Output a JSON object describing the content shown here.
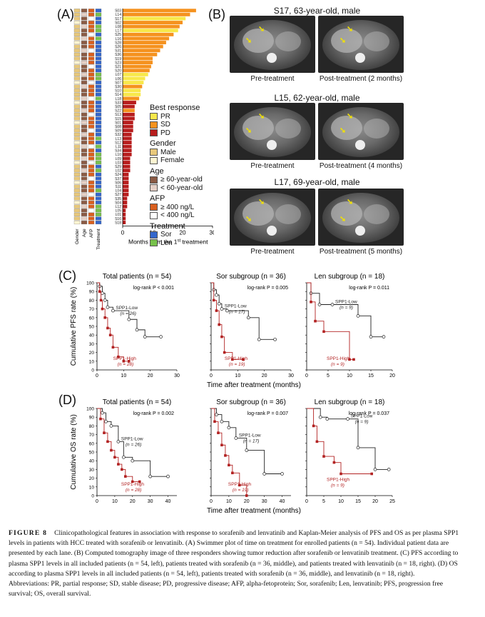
{
  "panels": {
    "a": "(A)",
    "b": "(B)",
    "c": "(C)",
    "d": "(D)"
  },
  "swimmer": {
    "patients": [
      "S03",
      "L14",
      "S17",
      "S02",
      "L08",
      "L17",
      "S25",
      "L16",
      "S28",
      "S26",
      "S31",
      "S36",
      "S19",
      "S23",
      "S21",
      "S20",
      "L07",
      "L06",
      "S07",
      "S30",
      "S10",
      "S14",
      "L18",
      "S33",
      "S05",
      "S22",
      "S13",
      "S15",
      "S01",
      "S08",
      "S09",
      "S32",
      "L13",
      "S12",
      "L11",
      "S34",
      "L10",
      "L09",
      "L03",
      "S29",
      "L02",
      "S24",
      "S37",
      "S06",
      "S11",
      "L04",
      "S27",
      "S35",
      "S04",
      "L12",
      "L05",
      "L01",
      "S16",
      "S18"
    ],
    "months": [
      24.5,
      22.5,
      21,
      20,
      19,
      18.5,
      17,
      15.5,
      14.5,
      13.5,
      12.5,
      11.5,
      10,
      10,
      9.5,
      9,
      8.5,
      7.5,
      7,
      6.5,
      6,
      6,
      5.5,
      4.5,
      4,
      4,
      4,
      4,
      3.5,
      3.5,
      3.5,
      3,
      3,
      3,
      3,
      3,
      3,
      2.5,
      2.5,
      2.5,
      2.5,
      2,
      2,
      2,
      2,
      2,
      2,
      1.5,
      1.5,
      1.5,
      1,
      1,
      1,
      1
    ],
    "response": [
      "SD",
      "SD",
      "PR",
      "SD",
      "SD",
      "PR",
      "SD",
      "SD",
      "SD",
      "SD",
      "SD",
      "SD",
      "SD",
      "SD",
      "SD",
      "SD",
      "PR",
      "PR",
      "PR",
      "SD",
      "PR",
      "PR",
      "SD",
      "PD",
      "PD",
      "SD",
      "PD",
      "PD",
      "PD",
      "PD",
      "PD",
      "PD",
      "PD",
      "PD",
      "PD",
      "PD",
      "PD",
      "PD",
      "PD",
      "PD",
      "PD",
      "PD",
      "PD",
      "PD",
      "PD",
      "PD",
      "PD",
      "PD",
      "PD",
      "PD",
      "PD",
      "PD",
      "PD",
      "PD"
    ],
    "columns": [
      "Gender",
      "Age",
      "AFP",
      "Treatment"
    ],
    "xlabel_main": "Months from the 1",
    "xlabel_sup": "st",
    "xlabel_end": " treatment",
    "xticks": [
      "0",
      "10",
      "20",
      "30"
    ],
    "xmax": 30,
    "legend": {
      "best_response_title": "Best response",
      "br": [
        {
          "label": "PR",
          "color": "#f8e84a"
        },
        {
          "label": "SD",
          "color": "#f5921e"
        },
        {
          "label": "PD",
          "color": "#b71c1c"
        }
      ],
      "gender_title": "Gender",
      "gender": [
        {
          "label": "Male",
          "color": "#e8c87a"
        },
        {
          "label": "Female",
          "color": "#fff6d2"
        }
      ],
      "age_title": "Age",
      "age": [
        {
          "label": "≥ 60-year-old",
          "color": "#8a5a44"
        },
        {
          "label": "< 60-year-old",
          "color": "#e5d0c6"
        }
      ],
      "afp_title": "AFP",
      "afp": [
        {
          "label": "≥ 400 ng/L",
          "color": "#d95f1e"
        },
        {
          "label": "< 400 ng/L",
          "color": "#ffffff"
        }
      ],
      "treatment_title": "Treatment",
      "treatment": [
        {
          "label": "Sor",
          "color": "#3366cc"
        },
        {
          "label": "Len",
          "color": "#77c14b"
        }
      ]
    }
  },
  "ct": {
    "rows": [
      {
        "title": "S17, 63-year-old, male",
        "pre": "Pre-treatment",
        "post": "Post-treatment (2 months)"
      },
      {
        "title": "L15, 62-year-old, male",
        "pre": "Pre-treatment",
        "post": "Post-treatment (4 months)"
      },
      {
        "title": "L17, 69-year-old, male",
        "pre": "Pre-treatment",
        "post": "Post-treatment (5 months)"
      }
    ]
  },
  "chart_data": [
    {
      "type": "line",
      "panel": "C",
      "title": "Total patients (n = 54)",
      "ylabel": "Cumulative PFS rate (%)",
      "xlabel": "Time after treatment (months)",
      "xlim": [
        0,
        30
      ],
      "ylim": [
        0,
        100
      ],
      "xticks": [
        0,
        10,
        20,
        30
      ],
      "yticks": [
        0,
        10,
        20,
        30,
        40,
        50,
        60,
        70,
        80,
        90,
        100
      ],
      "logrank": "log-rank P < 0.001",
      "series": [
        {
          "name": "SPP1-Low",
          "n": "(n = 26)",
          "color": "#222",
          "x": [
            0,
            1,
            2,
            3,
            4,
            6,
            12,
            15,
            18,
            24
          ],
          "y": [
            100,
            96,
            88,
            80,
            72,
            68,
            58,
            46,
            38,
            38
          ]
        },
        {
          "name": "SPP1-High",
          "n": "(n = 28)",
          "color": "#b22222",
          "x": [
            0,
            1,
            1.5,
            2,
            3,
            4,
            5,
            6,
            8,
            10,
            12
          ],
          "y": [
            100,
            90,
            80,
            70,
            60,
            48,
            40,
            26,
            15,
            10,
            10
          ]
        }
      ]
    },
    {
      "type": "line",
      "panel": "C",
      "title": "Sor subgroup (n = 36)",
      "ylabel": "",
      "xlabel": "",
      "xlim": [
        0,
        30
      ],
      "ylim": [
        0,
        100
      ],
      "xticks": [
        0,
        10,
        20,
        30
      ],
      "logrank": "log-rank P = 0.005",
      "series": [
        {
          "name": "SPP1-Low",
          "n": "(n = 17)",
          "color": "#222",
          "x": [
            0,
            1,
            2,
            3,
            4,
            6,
            14,
            18,
            24
          ],
          "y": [
            100,
            92,
            86,
            76,
            70,
            68,
            60,
            35,
            35
          ]
        },
        {
          "name": "SPP1-High",
          "n": "(n = 19)",
          "color": "#b22222",
          "x": [
            0,
            1,
            2,
            3,
            4,
            5,
            8,
            12
          ],
          "y": [
            100,
            80,
            68,
            52,
            38,
            20,
            12,
            12
          ]
        }
      ]
    },
    {
      "type": "line",
      "panel": "C",
      "title": "Len subgroup (n = 18)",
      "ylabel": "",
      "xlabel": "",
      "xlim": [
        0,
        20
      ],
      "ylim": [
        0,
        100
      ],
      "xticks": [
        0,
        5,
        10,
        15,
        20
      ],
      "logrank": "log-rank P = 0.011",
      "series": [
        {
          "name": "SPP1-Low",
          "n": "(n = 9)",
          "color": "#222",
          "x": [
            0,
            1,
            3,
            6,
            12,
            15,
            18
          ],
          "y": [
            100,
            88,
            75,
            75,
            62,
            38,
            38
          ]
        },
        {
          "name": "SPP1-High",
          "n": "(n = 9)",
          "color": "#b22222",
          "x": [
            0,
            1,
            2,
            4,
            10,
            11
          ],
          "y": [
            100,
            78,
            56,
            44,
            12,
            12
          ]
        }
      ]
    },
    {
      "type": "line",
      "panel": "D",
      "title": "Total patients (n = 54)",
      "ylabel": "Cumulative OS rate (%)",
      "xlabel": "Time after treatment (months)",
      "xlim": [
        0,
        45
      ],
      "ylim": [
        0,
        100
      ],
      "xticks": [
        0,
        10,
        20,
        30,
        40
      ],
      "logrank": "log-rank P = 0.002",
      "series": [
        {
          "name": "SPP1-Low",
          "n": "(n = 26)",
          "color": "#222",
          "x": [
            0,
            3,
            5,
            8,
            12,
            15,
            20,
            30,
            40
          ],
          "y": [
            100,
            95,
            85,
            80,
            62,
            44,
            40,
            22,
            22
          ]
        },
        {
          "name": "SPP1-High",
          "n": "(n = 28)",
          "color": "#b22222",
          "x": [
            0,
            2,
            4,
            6,
            8,
            10,
            12,
            14,
            16,
            20,
            24
          ],
          "y": [
            100,
            88,
            72,
            62,
            52,
            44,
            36,
            30,
            22,
            16,
            16
          ]
        }
      ]
    },
    {
      "type": "line",
      "panel": "D",
      "title": "Sor subgroup (n = 36)",
      "ylabel": "",
      "xlabel": "",
      "xlim": [
        0,
        45
      ],
      "ylim": [
        0,
        100
      ],
      "xticks": [
        0,
        10,
        20,
        30,
        40
      ],
      "logrank": "log-rank P = 0.007",
      "series": [
        {
          "name": "SPP1-Low",
          "n": "(n = 17)",
          "color": "#222",
          "x": [
            0,
            3,
            6,
            10,
            14,
            20,
            30,
            40
          ],
          "y": [
            100,
            93,
            85,
            78,
            66,
            52,
            25,
            25
          ]
        },
        {
          "name": "SPP1-High",
          "n": "(n = 19)",
          "color": "#b22222",
          "x": [
            0,
            2,
            4,
            6,
            8,
            10,
            12,
            16,
            20
          ],
          "y": [
            100,
            85,
            72,
            58,
            46,
            35,
            26,
            12,
            0
          ]
        }
      ]
    },
    {
      "type": "line",
      "panel": "D",
      "title": "Len subgroup (n = 18)",
      "ylabel": "",
      "xlabel": "",
      "xlim": [
        0,
        25
      ],
      "ylim": [
        0,
        100
      ],
      "xticks": [
        0,
        5,
        10,
        15,
        20,
        25
      ],
      "logrank": "log-rank P = 0.037",
      "series": [
        {
          "name": "SPP1-Low",
          "n": "(n = 9)",
          "color": "#222",
          "x": [
            0,
            4,
            6,
            12,
            15,
            20,
            24
          ],
          "y": [
            100,
            90,
            88,
            88,
            55,
            30,
            30
          ]
        },
        {
          "name": "SPP1-High",
          "n": "(n = 9)",
          "color": "#b22222",
          "x": [
            0,
            2,
            3,
            5,
            8,
            10,
            19
          ],
          "y": [
            100,
            80,
            62,
            45,
            38,
            25,
            25
          ]
        }
      ]
    }
  ],
  "caption": {
    "figure": "FIGURE 8",
    "text": "Clinicopathological features in association with response to sorafenib and lenvatinib and Kaplan-Meier analysis of PFS and OS as per plasma SPP1 levels in patients with HCC treated with sorafenib or lenvatinib. (A) Swimmer plot of time on treatment for enrolled patients (n = 54). Individual patient data are presented by each lane. (B) Computed tomography image of three responders showing tumor reduction after sorafenib or lenvatinib treatment. (C) PFS according to plasma SPP1 levels in all included patients (n = 54, left), patients treated with sorafenib (n = 36, middle), and patients treated with lenvatinib (n = 18, right). (D) OS according to plasma SPP1 levels in all included patients (n = 54, left), patients treated with sorafenib (n = 36, middle), and lenvatinib (n = 18, right).",
    "abbrev": "Abbreviations: PR, partial response; SD, stable disease; PD, progressive disease; AFP, alpha-fetoprotein; Sor, sorafenib; Len, lenvatinib; PFS, progression free survival; OS, overall survival."
  }
}
